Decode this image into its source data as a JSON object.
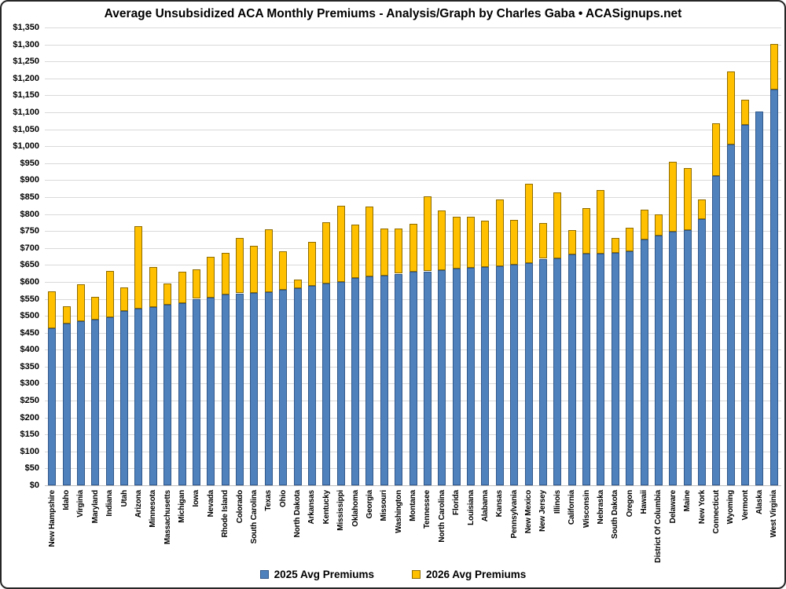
{
  "title": "Average Unsubsidized ACA Monthly Premiums - Analysis/Graph by Charles Gaba • ACASignups.net",
  "legend": {
    "items": [
      {
        "label": "2025 Avg Premiums",
        "color": "#4f81bd"
      },
      {
        "label": "2026 Avg Premiums",
        "color": "#ffc000"
      }
    ]
  },
  "chart_data": {
    "type": "bar",
    "title": "Average Unsubsidized ACA Monthly Premiums - Analysis/Graph by Charles Gaba • ACASignups.net",
    "categories": [
      "New Hampshire",
      "Idaho",
      "Virginia",
      "Maryland",
      "Indiana",
      "Utah",
      "Arizona",
      "Minnesota",
      "Massachusetts",
      "Michigan",
      "Iowa",
      "Nevada",
      "Rhode Island",
      "Colorado",
      "South Carolina",
      "Texas",
      "Ohio",
      "North Dakota",
      "Arkansas",
      "Kentucky",
      "Mississippi",
      "Oklahoma",
      "Georgia",
      "Missouri",
      "Washington",
      "Montana",
      "Tennessee",
      "North Carolina",
      "Florida",
      "Louisiana",
      "Alabama",
      "Kansas",
      "Pennsylvania",
      "New Mexico",
      "New Jersey",
      "Illinois",
      "California",
      "Wisconsin",
      "Nebraska",
      "South Dakota",
      "Oregon",
      "Hawaii",
      "District Of Columbia",
      "Delaware",
      "Maine",
      "New York",
      "Connecticut",
      "Wyoming",
      "Vermont",
      "Alaska",
      "West Virginia"
    ],
    "series": [
      {
        "name": "2025 Avg Premiums",
        "color": "#4f81bd",
        "values": [
          464,
          477,
          484,
          488,
          496,
          514,
          520,
          526,
          532,
          537,
          550,
          553,
          562,
          566,
          568,
          569,
          576,
          582,
          588,
          595,
          600,
          611,
          616,
          618,
          624,
          630,
          631,
          634,
          639,
          641,
          644,
          646,
          651,
          656,
          668,
          670,
          681,
          683,
          684,
          686,
          691,
          725,
          736,
          747,
          753,
          786,
          913,
          1004,
          1063,
          1103,
          1168
        ]
      },
      {
        "name": "2026 Avg Premiums",
        "color": "#ffc000",
        "values": [
          572,
          529,
          593,
          555,
          633,
          584,
          765,
          644,
          596,
          630,
          637,
          675,
          685,
          730,
          707,
          755,
          690,
          607,
          718,
          775,
          825,
          770,
          823,
          758,
          757,
          771,
          853,
          811,
          792,
          791,
          780,
          843,
          782,
          889,
          774,
          864,
          752,
          818,
          871,
          730,
          760,
          812,
          800,
          955,
          936,
          844,
          1068,
          1220,
          1136,
          null,
          1301
        ]
      }
    ],
    "ylim": [
      0,
      1350
    ],
    "ytick_step": 50,
    "y_tick_labels": [
      "$0",
      "$50",
      "$100",
      "$150",
      "$200",
      "$250",
      "$300",
      "$350",
      "$400",
      "$450",
      "$500",
      "$550",
      "$600",
      "$650",
      "$700",
      "$750",
      "$800",
      "$850",
      "$900",
      "$950",
      "$1,000",
      "$1,050",
      "$1,100",
      "$1,150",
      "$1,200",
      "$1,250",
      "$1,300",
      "$1,350"
    ],
    "grid": true,
    "legend_position": "bottom",
    "sorted_by": "2025 value ascending",
    "note": "Stacked rendering: yellow 2026 segment is drawn from the 2025 value up to the 2026 total. Alaska has no 2026 segment."
  }
}
